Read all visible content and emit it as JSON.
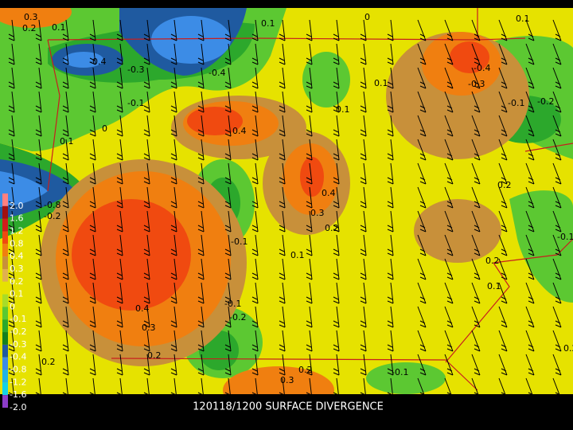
{
  "title": "120118/1200 SURFACE DIVERGENCE",
  "colorbar": {
    "labels": [
      "2.0",
      "1.6",
      "1.2",
      "0.8",
      "0.4",
      "0.3",
      "0.2",
      "0.1",
      "0",
      "-0.1",
      "-0.2",
      "-0.3",
      "-0.4",
      "-0.8",
      "-1.2",
      "-1.6",
      "-2.0"
    ],
    "colors": [
      "#ff8080",
      "#a01010",
      "#d01c1c",
      "#f04a10",
      "#f07f10",
      "#c8903a",
      "#e0b050",
      "#e6e200",
      "#a8dc28",
      "#5cc832",
      "#2ca82c",
      "#14801e",
      "#1f5aa0",
      "#3c8ce6",
      "#22b4e6",
      "#14d2e6",
      "#8c3cc8"
    ]
  },
  "contour_labels": [
    "0.3",
    "0.2",
    "0.1",
    "-0.4",
    "-0.3",
    "-0.1",
    "-0.4",
    "0.1",
    "0.4",
    "0",
    "0.1",
    "-0.4",
    "-0.3",
    "0.1",
    "-0.1",
    "-0.2",
    "0",
    "0.4",
    "0.3",
    "0.2",
    "0.1",
    "-0.1",
    "0.2",
    "-0.8",
    "-0.2",
    "0.4",
    "0.3",
    "0.2",
    "-0.1",
    "-0.2",
    "0.1",
    "0.3",
    "0.2",
    "-0.1",
    "0.1",
    "0.2",
    "-0.1",
    "0.2",
    "0.1",
    "0.2"
  ]
}
